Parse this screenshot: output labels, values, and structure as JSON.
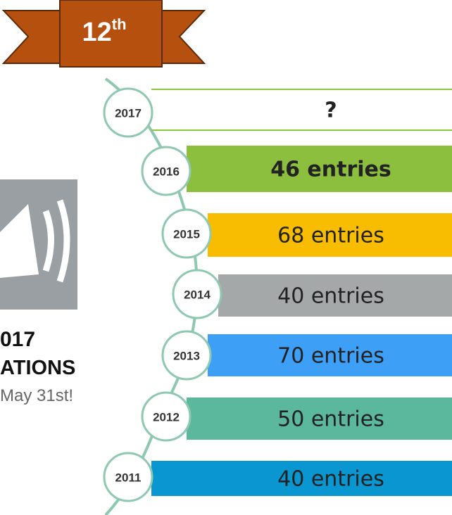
{
  "badge": {
    "number": "12",
    "suffix": "th"
  },
  "announcement": {
    "line1": "017",
    "line2": "ATIONS",
    "line3": "May 31st!"
  },
  "timeline": [
    {
      "year": "2017",
      "entries": "?"
    },
    {
      "year": "2016",
      "entries": "46 entries"
    },
    {
      "year": "2015",
      "entries": "68 entries"
    },
    {
      "year": "2014",
      "entries": "40 entries"
    },
    {
      "year": "2013",
      "entries": "70 entries"
    },
    {
      "year": "2012",
      "entries": "50 entries"
    },
    {
      "year": "2011",
      "entries": "40 entries"
    }
  ]
}
